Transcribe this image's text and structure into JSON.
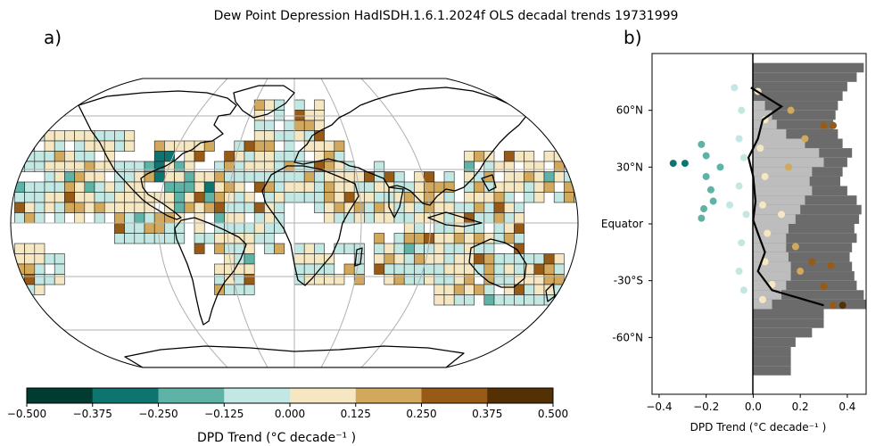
{
  "title": "Dew Point Depression HadISDH.1.6.1.2024f OLS decadal trends 19731999",
  "panel_a": {
    "label": "a)",
    "type": "map",
    "colorbar": {
      "ticks": [
        "−0.500",
        "−0.375",
        "−0.250",
        "−0.125",
        "0.000",
        "0.125",
        "0.250",
        "0.375",
        "0.500"
      ],
      "colors": [
        "#003c30",
        "#0d7470",
        "#5fb2a6",
        "#c3e7e2",
        "#f6e7c3",
        "#d1a85c",
        "#985a17",
        "#543005"
      ],
      "label": "DPD Trend (°C decade⁻¹ )"
    }
  },
  "panel_b": {
    "label": "b)",
    "type": "scatter",
    "xlabel": "DPD Trend (°C decade⁻¹ )",
    "xticks": [
      "−0.4",
      "−0.2",
      "0.0",
      "0.2",
      "0.4"
    ],
    "yticks": [
      "60°N",
      "30°N",
      "Equator",
      "-30°S",
      "-60°N"
    ]
  },
  "chart_data": {
    "type": "scatter",
    "xlim": [
      -0.43,
      0.48
    ],
    "ylim": [
      -90,
      90
    ],
    "points": [
      {
        "x": -0.34,
        "y": 32
      },
      {
        "x": -0.29,
        "y": 32
      },
      {
        "x": -0.22,
        "y": 42
      },
      {
        "x": -0.2,
        "y": 36
      },
      {
        "x": -0.2,
        "y": 25
      },
      {
        "x": -0.18,
        "y": 18
      },
      {
        "x": -0.21,
        "y": 8
      },
      {
        "x": -0.17,
        "y": 12
      },
      {
        "x": -0.22,
        "y": 3
      },
      {
        "x": -0.14,
        "y": 30
      },
      {
        "x": -0.1,
        "y": 10
      },
      {
        "x": -0.08,
        "y": 72
      },
      {
        "x": -0.05,
        "y": 60
      },
      {
        "x": -0.06,
        "y": 45
      },
      {
        "x": -0.04,
        "y": 35
      },
      {
        "x": -0.06,
        "y": 20
      },
      {
        "x": -0.03,
        "y": 5
      },
      {
        "x": -0.05,
        "y": -10
      },
      {
        "x": -0.06,
        "y": -25
      },
      {
        "x": -0.04,
        "y": -35
      },
      {
        "x": 0.02,
        "y": 70
      },
      {
        "x": 0.05,
        "y": 55
      },
      {
        "x": 0.03,
        "y": 40
      },
      {
        "x": 0.05,
        "y": 25
      },
      {
        "x": 0.04,
        "y": 10
      },
      {
        "x": 0.06,
        "y": -5
      },
      {
        "x": 0.05,
        "y": -20
      },
      {
        "x": 0.08,
        "y": -32
      },
      {
        "x": 0.04,
        "y": -40
      },
      {
        "x": 0.16,
        "y": 60
      },
      {
        "x": 0.22,
        "y": 45
      },
      {
        "x": 0.3,
        "y": 52
      },
      {
        "x": 0.15,
        "y": 30
      },
      {
        "x": 0.12,
        "y": 5
      },
      {
        "x": 0.18,
        "y": -12
      },
      {
        "x": 0.25,
        "y": -20
      },
      {
        "x": 0.3,
        "y": -33
      },
      {
        "x": 0.34,
        "y": -43
      },
      {
        "x": 0.2,
        "y": -25
      },
      {
        "x": 0.34,
        "y": 52
      },
      {
        "x": 0.33,
        "y": -22
      },
      {
        "x": 0.38,
        "y": -43
      }
    ],
    "mean_line": [
      {
        "x": -0.01,
        "y": 72
      },
      {
        "x": 0.12,
        "y": 62
      },
      {
        "x": 0.04,
        "y": 55
      },
      {
        "x": 0.02,
        "y": 45
      },
      {
        "x": -0.02,
        "y": 35
      },
      {
        "x": 0.0,
        "y": 25
      },
      {
        "x": 0.01,
        "y": 12
      },
      {
        "x": 0.0,
        "y": 2
      },
      {
        "x": 0.02,
        "y": -5
      },
      {
        "x": 0.05,
        "y": -15
      },
      {
        "x": 0.02,
        "y": -25
      },
      {
        "x": 0.08,
        "y": -35
      },
      {
        "x": 0.3,
        "y": -43
      }
    ],
    "coverage_hist": [
      {
        "lat0": 85,
        "lat1": 80,
        "dark": 0.47,
        "light": 0.0
      },
      {
        "lat0": 80,
        "lat1": 75,
        "dark": 0.44,
        "light": 0.0
      },
      {
        "lat0": 75,
        "lat1": 70,
        "dark": 0.4,
        "light": 0.0
      },
      {
        "lat0": 70,
        "lat1": 65,
        "dark": 0.38,
        "light": 0.0
      },
      {
        "lat0": 65,
        "lat1": 60,
        "dark": 0.36,
        "light": 0.05
      },
      {
        "lat0": 60,
        "lat1": 55,
        "dark": 0.35,
        "light": 0.08
      },
      {
        "lat0": 55,
        "lat1": 50,
        "dark": 0.34,
        "light": 0.1
      },
      {
        "lat0": 50,
        "lat1": 45,
        "dark": 0.36,
        "light": 0.14
      },
      {
        "lat0": 45,
        "lat1": 40,
        "dark": 0.38,
        "light": 0.22
      },
      {
        "lat0": 40,
        "lat1": 35,
        "dark": 0.42,
        "light": 0.28
      },
      {
        "lat0": 35,
        "lat1": 30,
        "dark": 0.4,
        "light": 0.3
      },
      {
        "lat0": 30,
        "lat1": 25,
        "dark": 0.38,
        "light": 0.25
      },
      {
        "lat0": 25,
        "lat1": 20,
        "dark": 0.37,
        "light": 0.24
      },
      {
        "lat0": 20,
        "lat1": 15,
        "dark": 0.4,
        "light": 0.25
      },
      {
        "lat0": 15,
        "lat1": 10,
        "dark": 0.44,
        "light": 0.22
      },
      {
        "lat0": 10,
        "lat1": 5,
        "dark": 0.46,
        "light": 0.2
      },
      {
        "lat0": 5,
        "lat1": 0,
        "dark": 0.45,
        "light": 0.18
      },
      {
        "lat0": 0,
        "lat1": -5,
        "dark": 0.43,
        "light": 0.15
      },
      {
        "lat0": -5,
        "lat1": -10,
        "dark": 0.44,
        "light": 0.14
      },
      {
        "lat0": -10,
        "lat1": -15,
        "dark": 0.42,
        "light": 0.14
      },
      {
        "lat0": -15,
        "lat1": -20,
        "dark": 0.41,
        "light": 0.15
      },
      {
        "lat0": -20,
        "lat1": -25,
        "dark": 0.42,
        "light": 0.16
      },
      {
        "lat0": -25,
        "lat1": -30,
        "dark": 0.43,
        "light": 0.16
      },
      {
        "lat0": -30,
        "lat1": -35,
        "dark": 0.44,
        "light": 0.14
      },
      {
        "lat0": -35,
        "lat1": -40,
        "dark": 0.47,
        "light": 0.12
      },
      {
        "lat0": -40,
        "lat1": -45,
        "dark": 0.48,
        "light": 0.08
      },
      {
        "lat0": -45,
        "lat1": -50,
        "dark": 0.3,
        "light": 0.0
      },
      {
        "lat0": -50,
        "lat1": -55,
        "dark": 0.3,
        "light": 0.0
      },
      {
        "lat0": -55,
        "lat1": -60,
        "dark": 0.25,
        "light": 0.0
      },
      {
        "lat0": -60,
        "lat1": -65,
        "dark": 0.18,
        "light": 0.0
      },
      {
        "lat0": -65,
        "lat1": -70,
        "dark": 0.16,
        "light": 0.0
      },
      {
        "lat0": -70,
        "lat1": -75,
        "dark": 0.16,
        "light": 0.0
      },
      {
        "lat0": -75,
        "lat1": -80,
        "dark": 0.16,
        "light": 0.0
      }
    ]
  }
}
